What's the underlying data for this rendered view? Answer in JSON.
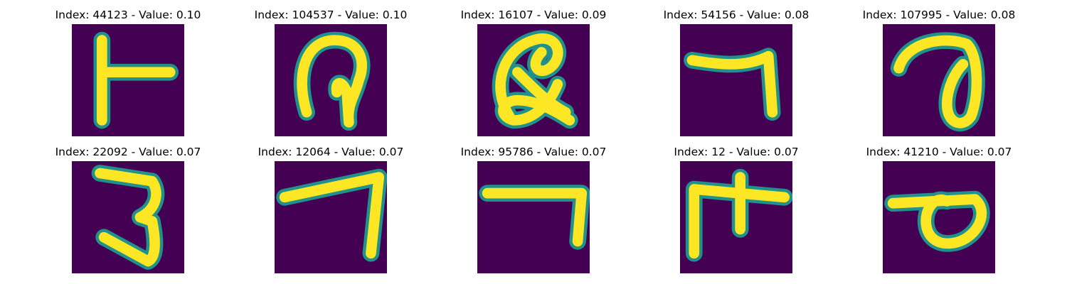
{
  "figure": {
    "colors": {
      "background": "#440154",
      "stroke": "#fde725",
      "edge": "#21918c"
    },
    "panels": [
      {
        "title": "Index: 44123 - Value: 0.10",
        "glyph": "glyph-t"
      },
      {
        "title": "Index: 104537 - Value: 0.10",
        "glyph": "glyph-loop-a"
      },
      {
        "title": "Index: 16107 - Value: 0.09",
        "glyph": "glyph-scribble"
      },
      {
        "title": "Index: 54156 - Value: 0.08",
        "glyph": "glyph-seven"
      },
      {
        "title": "Index: 107995 - Value: 0.08",
        "glyph": "glyph-curl"
      },
      {
        "title": "Index: 22092 - Value: 0.07",
        "glyph": "glyph-three"
      },
      {
        "title": "Index: 12064 - Value: 0.07",
        "glyph": "glyph-seven-b"
      },
      {
        "title": "Index: 95786 - Value: 0.07",
        "glyph": "glyph-hook"
      },
      {
        "title": "Index: 12 - Value: 0.07",
        "glyph": "glyph-cross"
      },
      {
        "title": "Index: 41210 - Value: 0.07",
        "glyph": "glyph-loop-b"
      }
    ]
  }
}
